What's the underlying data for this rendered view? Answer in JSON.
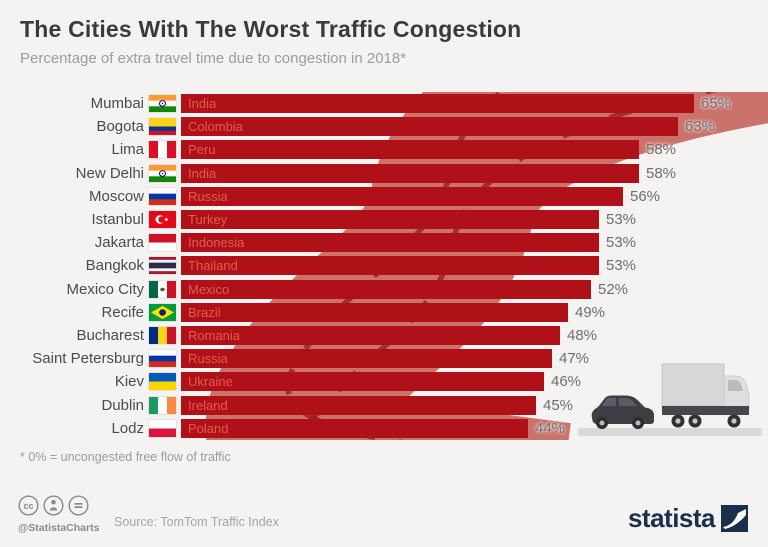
{
  "chart_data": {
    "type": "bar",
    "orientation": "horizontal",
    "title": "The Cities With The Worst Traffic Congestion",
    "subtitle": "Percentage of extra travel time due to congestion in 2018*",
    "unit": "%",
    "xlim": [
      0,
      65
    ],
    "grid": false,
    "legend": "none",
    "categories": [
      "Mumbai",
      "Bogota",
      "Lima",
      "New Delhi",
      "Moscow",
      "Istanbul",
      "Jakarta",
      "Bangkok",
      "Mexico City",
      "Recife",
      "Bucharest",
      "Saint Petersburg",
      "Kiev",
      "Dublin",
      "Lodz"
    ],
    "values": [
      65,
      63,
      58,
      58,
      56,
      53,
      53,
      53,
      52,
      49,
      48,
      47,
      46,
      45,
      44
    ],
    "rows": [
      {
        "city": "Mumbai",
        "country": "India",
        "value": 65,
        "label": "65%",
        "flag": {
          "name": "flag-india",
          "type": "h",
          "stripes": [
            "#FF9933",
            "#FFFFFF",
            "#138808"
          ],
          "emblem": "chakra"
        }
      },
      {
        "city": "Bogota",
        "country": "Colombia",
        "value": 63,
        "label": "63%",
        "flag": {
          "name": "flag-colombia",
          "type": "h",
          "stripes": [
            "#FCD116",
            "#003893",
            "#CE1126"
          ],
          "weights": [
            2,
            1,
            1
          ]
        }
      },
      {
        "city": "Lima",
        "country": "Peru",
        "value": 58,
        "label": "58%",
        "flag": {
          "name": "flag-peru",
          "type": "v",
          "stripes": [
            "#D91023",
            "#FFFFFF",
            "#D91023"
          ]
        }
      },
      {
        "city": "New Delhi",
        "country": "India",
        "value": 58,
        "label": "58%",
        "flag": {
          "name": "flag-india",
          "type": "h",
          "stripes": [
            "#FF9933",
            "#FFFFFF",
            "#138808"
          ],
          "emblem": "chakra"
        }
      },
      {
        "city": "Moscow",
        "country": "Russia",
        "value": 56,
        "label": "56%",
        "flag": {
          "name": "flag-russia",
          "type": "h",
          "stripes": [
            "#FFFFFF",
            "#0039A6",
            "#D52B1E"
          ]
        }
      },
      {
        "city": "Istanbul",
        "country": "Turkey",
        "value": 53,
        "label": "53%",
        "flag": {
          "name": "flag-turkey",
          "type": "h",
          "stripes": [
            "#E30A17"
          ],
          "emblem": "crescent"
        }
      },
      {
        "city": "Jakarta",
        "country": "Indonesia",
        "value": 53,
        "label": "53%",
        "flag": {
          "name": "flag-indonesia",
          "type": "h",
          "stripes": [
            "#CE1126",
            "#FFFFFF"
          ]
        }
      },
      {
        "city": "Bangkok",
        "country": "Thailand",
        "value": 53,
        "label": "53%",
        "flag": {
          "name": "flag-thailand",
          "type": "h",
          "stripes": [
            "#A51931",
            "#F4F5F8",
            "#2D2A4A",
            "#F4F5F8",
            "#A51931"
          ],
          "weights": [
            1,
            1,
            2,
            1,
            1
          ]
        }
      },
      {
        "city": "Mexico City",
        "country": "Mexico",
        "value": 52,
        "label": "52%",
        "flag": {
          "name": "flag-mexico",
          "type": "v",
          "stripes": [
            "#006847",
            "#FFFFFF",
            "#CE1126"
          ],
          "emblem": "eagle"
        }
      },
      {
        "city": "Recife",
        "country": "Brazil",
        "value": 49,
        "label": "49%",
        "flag": {
          "name": "flag-brazil",
          "type": "h",
          "stripes": [
            "#009B3A"
          ],
          "emblem": "brazil"
        }
      },
      {
        "city": "Bucharest",
        "country": "Romania",
        "value": 48,
        "label": "48%",
        "flag": {
          "name": "flag-romania",
          "type": "v",
          "stripes": [
            "#002B7F",
            "#FCD116",
            "#CE1126"
          ]
        }
      },
      {
        "city": "Saint Petersburg",
        "country": "Russia",
        "value": 47,
        "label": "47%",
        "flag": {
          "name": "flag-russia",
          "type": "h",
          "stripes": [
            "#FFFFFF",
            "#0039A6",
            "#D52B1E"
          ]
        }
      },
      {
        "city": "Kiev",
        "country": "Ukraine",
        "value": 46,
        "label": "46%",
        "flag": {
          "name": "flag-ukraine",
          "type": "h",
          "stripes": [
            "#005BBB",
            "#FFD500"
          ]
        }
      },
      {
        "city": "Dublin",
        "country": "Ireland",
        "value": 45,
        "label": "45%",
        "flag": {
          "name": "flag-ireland",
          "type": "v",
          "stripes": [
            "#169B62",
            "#FFFFFF",
            "#FF883E"
          ]
        }
      },
      {
        "city": "Lodz",
        "country": "Poland",
        "value": 44,
        "label": "44%",
        "flag": {
          "name": "flag-poland",
          "type": "h",
          "stripes": [
            "#FFFFFF",
            "#DC143C"
          ]
        }
      }
    ]
  },
  "footnote": "* 0% = uncongested free flow of traffic",
  "footer": {
    "license_icons": [
      "cc-icon",
      "attribution-icon",
      "no-derivatives-icon"
    ],
    "handle": "@StatistaCharts",
    "source": "Source: TomTom Traffic Index",
    "brand": "statista"
  },
  "colors": {
    "background": "#f4f3f1",
    "bar": "#b01119",
    "bar_text": "#df5c50",
    "road_watermark": "#c2564d",
    "road_dash": "#9e151c",
    "percent_text": "#6e6e6e",
    "brand_navy": "#1a2f4c"
  }
}
